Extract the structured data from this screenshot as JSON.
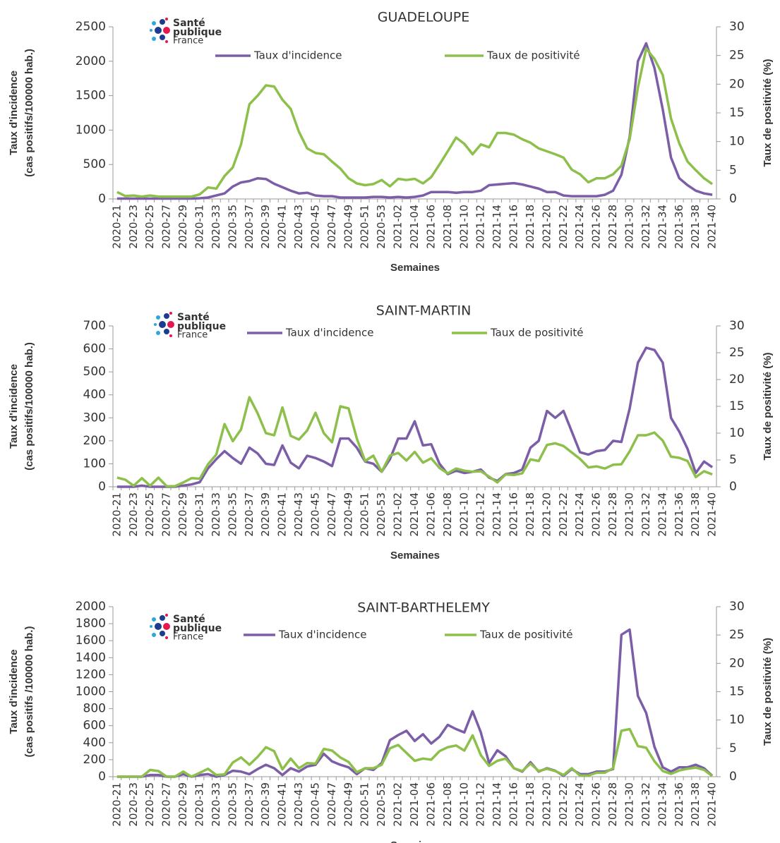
{
  "chart_data": [
    {
      "type": "line",
      "title": "GUADELOUPE",
      "logo_text": [
        "Santé",
        "publique",
        "France"
      ],
      "x_label": "Semaines",
      "y_label": [
        "Taux d'incidence",
        "(cas positifs/100000 hab.)"
      ],
      "y2_label": "Taux de positivité (%)",
      "categories": [
        "2020-21",
        null,
        "2020-23",
        null,
        "2020-25",
        null,
        "2020-27",
        null,
        "2020-29",
        null,
        "2020-31",
        null,
        "2020-33",
        null,
        "2020-35",
        null,
        "2020-37",
        null,
        "2020-39",
        null,
        "2020-41",
        null,
        "2020-43",
        null,
        "2020-45",
        null,
        "2020-47",
        null,
        "2020-49",
        null,
        "2020-51",
        null,
        "2020-53",
        null,
        "2021-02",
        null,
        "2021-04",
        null,
        "2021-06",
        null,
        "2021-08",
        null,
        "2021-10",
        null,
        "2021-12",
        null,
        "2021-14",
        null,
        "2021-16",
        null,
        "2021-18",
        null,
        "2021-20",
        null,
        "2021-22",
        null,
        "2021-24",
        null,
        "2021-26",
        null,
        "2021-28",
        null,
        "2021-30",
        null,
        "2021-32",
        null,
        "2021-34",
        null,
        "2021-36",
        null,
        "2021-38",
        null,
        "2021-40"
      ],
      "ylim": [
        0,
        2500
      ],
      "yticks": [
        0,
        500,
        1000,
        1500,
        2000,
        2500
      ],
      "y2lim": [
        0,
        30
      ],
      "y2ticks": [
        0,
        5,
        10,
        15,
        20,
        25,
        30
      ],
      "series": [
        {
          "name": "Taux d'incidence",
          "color": "#7b5ea7",
          "values": [
            5,
            5,
            5,
            5,
            5,
            5,
            5,
            5,
            5,
            5,
            10,
            20,
            50,
            80,
            180,
            240,
            260,
            300,
            290,
            220,
            170,
            120,
            80,
            90,
            50,
            40,
            40,
            20,
            20,
            20,
            20,
            30,
            30,
            20,
            30,
            20,
            30,
            50,
            100,
            100,
            100,
            90,
            100,
            100,
            120,
            200,
            210,
            220,
            230,
            210,
            180,
            150,
            100,
            100,
            50,
            40,
            40,
            40,
            40,
            60,
            120,
            350,
            900,
            2000,
            2260,
            1900,
            1300,
            600,
            300,
            200,
            120,
            80,
            60
          ]
        },
        {
          "name": "Taux de positivité",
          "color": "#8dc04b",
          "axis": "y2",
          "values": [
            1.2,
            0.5,
            0.6,
            0.4,
            0.6,
            0.4,
            0.4,
            0.4,
            0.4,
            0.4,
            0.8,
            2.0,
            1.8,
            4,
            5.5,
            9.5,
            16.5,
            18,
            19.8,
            19.6,
            17.3,
            15.7,
            11.7,
            8.8,
            8,
            7.8,
            6.5,
            5.3,
            3.6,
            2.7,
            2.4,
            2.6,
            3.3,
            2.2,
            3.5,
            3.3,
            3.5,
            2.7,
            3.8,
            6,
            8.3,
            10.7,
            9.6,
            7.8,
            9.5,
            9,
            11.5,
            11.5,
            11.2,
            10.4,
            9.8,
            8.8,
            8.3,
            7.8,
            7.2,
            5.1,
            4.3,
            2.9,
            3.6,
            3.6,
            4.3,
            5.8,
            10.4,
            19.4,
            26.2,
            24.4,
            21.6,
            14,
            9.7,
            6.5,
            5,
            3.6,
            2.6
          ]
        }
      ]
    },
    {
      "type": "line",
      "title": "SAINT-MARTIN",
      "logo_text": [
        "Santé",
        "publique",
        "France"
      ],
      "x_label": "Semaines",
      "y_label": [
        "Taux d'incidence",
        "(cas positifs/100000 hab.)"
      ],
      "y2_label": "Taux de positivité (%)",
      "categories": [
        "2020-21",
        null,
        "2020-23",
        null,
        "2020-25",
        null,
        "2020-27",
        null,
        "2020-29",
        null,
        "2020-31",
        null,
        "2020-33",
        null,
        "2020-35",
        null,
        "2020-37",
        null,
        "2020-39",
        null,
        "2020-41",
        null,
        "2020-43",
        null,
        "2020-45",
        null,
        "2020-47",
        null,
        "2020-49",
        null,
        "2020-51",
        null,
        "2020-53",
        null,
        "2021-02",
        null,
        "2021-04",
        null,
        "2021-06",
        null,
        "2021-08",
        null,
        "2021-10",
        null,
        "2021-12",
        null,
        "2021-14",
        null,
        "2021-16",
        null,
        "2021-18",
        null,
        "2021-20",
        null,
        "2021-22",
        null,
        "2021-24",
        null,
        "2021-26",
        null,
        "2021-28",
        null,
        "2021-30",
        null,
        "2021-32",
        null,
        "2021-34",
        null,
        "2021-36",
        null,
        "2021-38",
        null,
        "2021-40"
      ],
      "ylim": [
        0,
        700
      ],
      "yticks": [
        0,
        100,
        200,
        300,
        400,
        500,
        600,
        700
      ],
      "y2lim": [
        0,
        30
      ],
      "y2ticks": [
        0,
        5,
        10,
        15,
        20,
        25,
        30
      ],
      "series": [
        {
          "name": "Taux d'incidence",
          "color": "#7b5ea7",
          "values": [
            0,
            0,
            0,
            5,
            0,
            0,
            0,
            0,
            5,
            10,
            20,
            80,
            120,
            155,
            125,
            100,
            170,
            145,
            100,
            95,
            180,
            105,
            80,
            135,
            125,
            110,
            90,
            210,
            210,
            170,
            110,
            100,
            65,
            120,
            210,
            210,
            285,
            180,
            185,
            100,
            55,
            70,
            60,
            65,
            75,
            40,
            25,
            55,
            60,
            75,
            170,
            200,
            330,
            300,
            330,
            240,
            150,
            140,
            155,
            160,
            200,
            195,
            340,
            540,
            605,
            595,
            540,
            300,
            240,
            165,
            60,
            110,
            85
          ]
        },
        {
          "name": "Taux de positivité",
          "color": "#8dc04b",
          "axis": "y2",
          "values": [
            1.7,
            1.3,
            0.2,
            1.6,
            0.2,
            1.7,
            0.1,
            0.1,
            0.8,
            1.6,
            1.5,
            4.2,
            6,
            11.7,
            8.5,
            10.7,
            16.7,
            13.7,
            10,
            9.6,
            14.8,
            9.5,
            8.8,
            10.5,
            13.8,
            10,
            8.3,
            15,
            14.6,
            9,
            4.8,
            5.8,
            2.8,
            5.8,
            6.3,
            4.9,
            6.5,
            4.5,
            5.3,
            3.5,
            2.5,
            3.4,
            3,
            2.8,
            2.9,
            1.9,
            0.8,
            2.3,
            2.2,
            2.5,
            5.1,
            4.8,
            7.8,
            8.1,
            7.6,
            6.4,
            5.2,
            3.6,
            3.8,
            3.4,
            4.1,
            4.2,
            6.6,
            9.6,
            9.6,
            10.1,
            8.6,
            5.6,
            5.4,
            4.8,
            1.8,
            2.9,
            2.3
          ]
        }
      ]
    },
    {
      "type": "line",
      "title": "SAINT-BARTHELEMY",
      "logo_text": [
        "Santé",
        "publique",
        "France"
      ],
      "x_label": "Semaines",
      "y_label": [
        "Taux d'incidence",
        "(cas positifs /100000 hab.)"
      ],
      "y2_label": "Taux de positivité (%)",
      "categories": [
        "2020-21",
        null,
        "2020-23",
        null,
        "2020-25",
        null,
        "2020-27",
        null,
        "2020-29",
        null,
        "2020-31",
        null,
        "2020-33",
        null,
        "2020-35",
        null,
        "2020-37",
        null,
        "2020-39",
        null,
        "2020-41",
        null,
        "2020-43",
        null,
        "2020-45",
        null,
        "2020-47",
        null,
        "2020-49",
        null,
        "2020-51",
        null,
        "2020-53",
        null,
        "2021-02",
        null,
        "2021-04",
        null,
        "2021-06",
        null,
        "2021-08",
        null,
        "2021-10",
        null,
        "2021-12",
        null,
        "2021-14",
        null,
        "2021-16",
        null,
        "2021-18",
        null,
        "2021-20",
        null,
        "2021-22",
        null,
        "2021-24",
        null,
        "2021-26",
        null,
        "2021-28",
        null,
        "2021-30",
        null,
        "2021-32",
        null,
        "2021-34",
        null,
        "2021-36",
        null,
        "2021-38",
        null,
        "2021-40"
      ],
      "ylim": [
        0,
        2000
      ],
      "yticks": [
        0,
        200,
        400,
        600,
        800,
        1000,
        1200,
        1400,
        1600,
        1800,
        2000
      ],
      "y2lim": [
        0,
        30
      ],
      "y2ticks": [
        0,
        5,
        10,
        15,
        20,
        25,
        30
      ],
      "series": [
        {
          "name": "Taux d'incidence",
          "color": "#7b5ea7",
          "values": [
            0,
            0,
            0,
            0,
            20,
            20,
            0,
            0,
            30,
            0,
            20,
            30,
            0,
            20,
            70,
            60,
            30,
            90,
            140,
            100,
            20,
            100,
            60,
            120,
            140,
            270,
            180,
            140,
            110,
            30,
            100,
            80,
            160,
            430,
            490,
            540,
            420,
            500,
            390,
            470,
            610,
            560,
            520,
            770,
            520,
            160,
            310,
            240,
            100,
            60,
            170,
            60,
            100,
            70,
            10,
            90,
            30,
            30,
            60,
            60,
            90,
            1670,
            1730,
            950,
            750,
            350,
            110,
            60,
            110,
            110,
            140,
            100,
            10
          ]
        },
        {
          "name": "Taux de positivité",
          "color": "#8dc04b",
          "axis": "y2",
          "values": [
            0,
            0,
            0,
            0,
            1.2,
            1,
            0,
            0,
            0.9,
            0,
            0.7,
            1.4,
            0.3,
            0.4,
            2.5,
            3.4,
            2.1,
            3.5,
            5.2,
            4.5,
            1.3,
            3.2,
            1.5,
            2.4,
            2.3,
            4.9,
            4.6,
            3.4,
            2.6,
            0.8,
            1.5,
            1.5,
            2.1,
            5,
            5.6,
            4.2,
            2.8,
            3.2,
            3,
            4.5,
            5.2,
            5.5,
            4.6,
            7.3,
            3.8,
            1.9,
            2.8,
            3.2,
            1.5,
            1,
            2.3,
            1,
            1.4,
            1,
            0.3,
            1.5,
            0.2,
            0.2,
            0.7,
            0.7,
            1.5,
            8.1,
            8.4,
            5.4,
            5.1,
            2.7,
            1,
            0.5,
            1.1,
            1.4,
            1.6,
            1.2,
            0.1
          ]
        }
      ]
    }
  ]
}
